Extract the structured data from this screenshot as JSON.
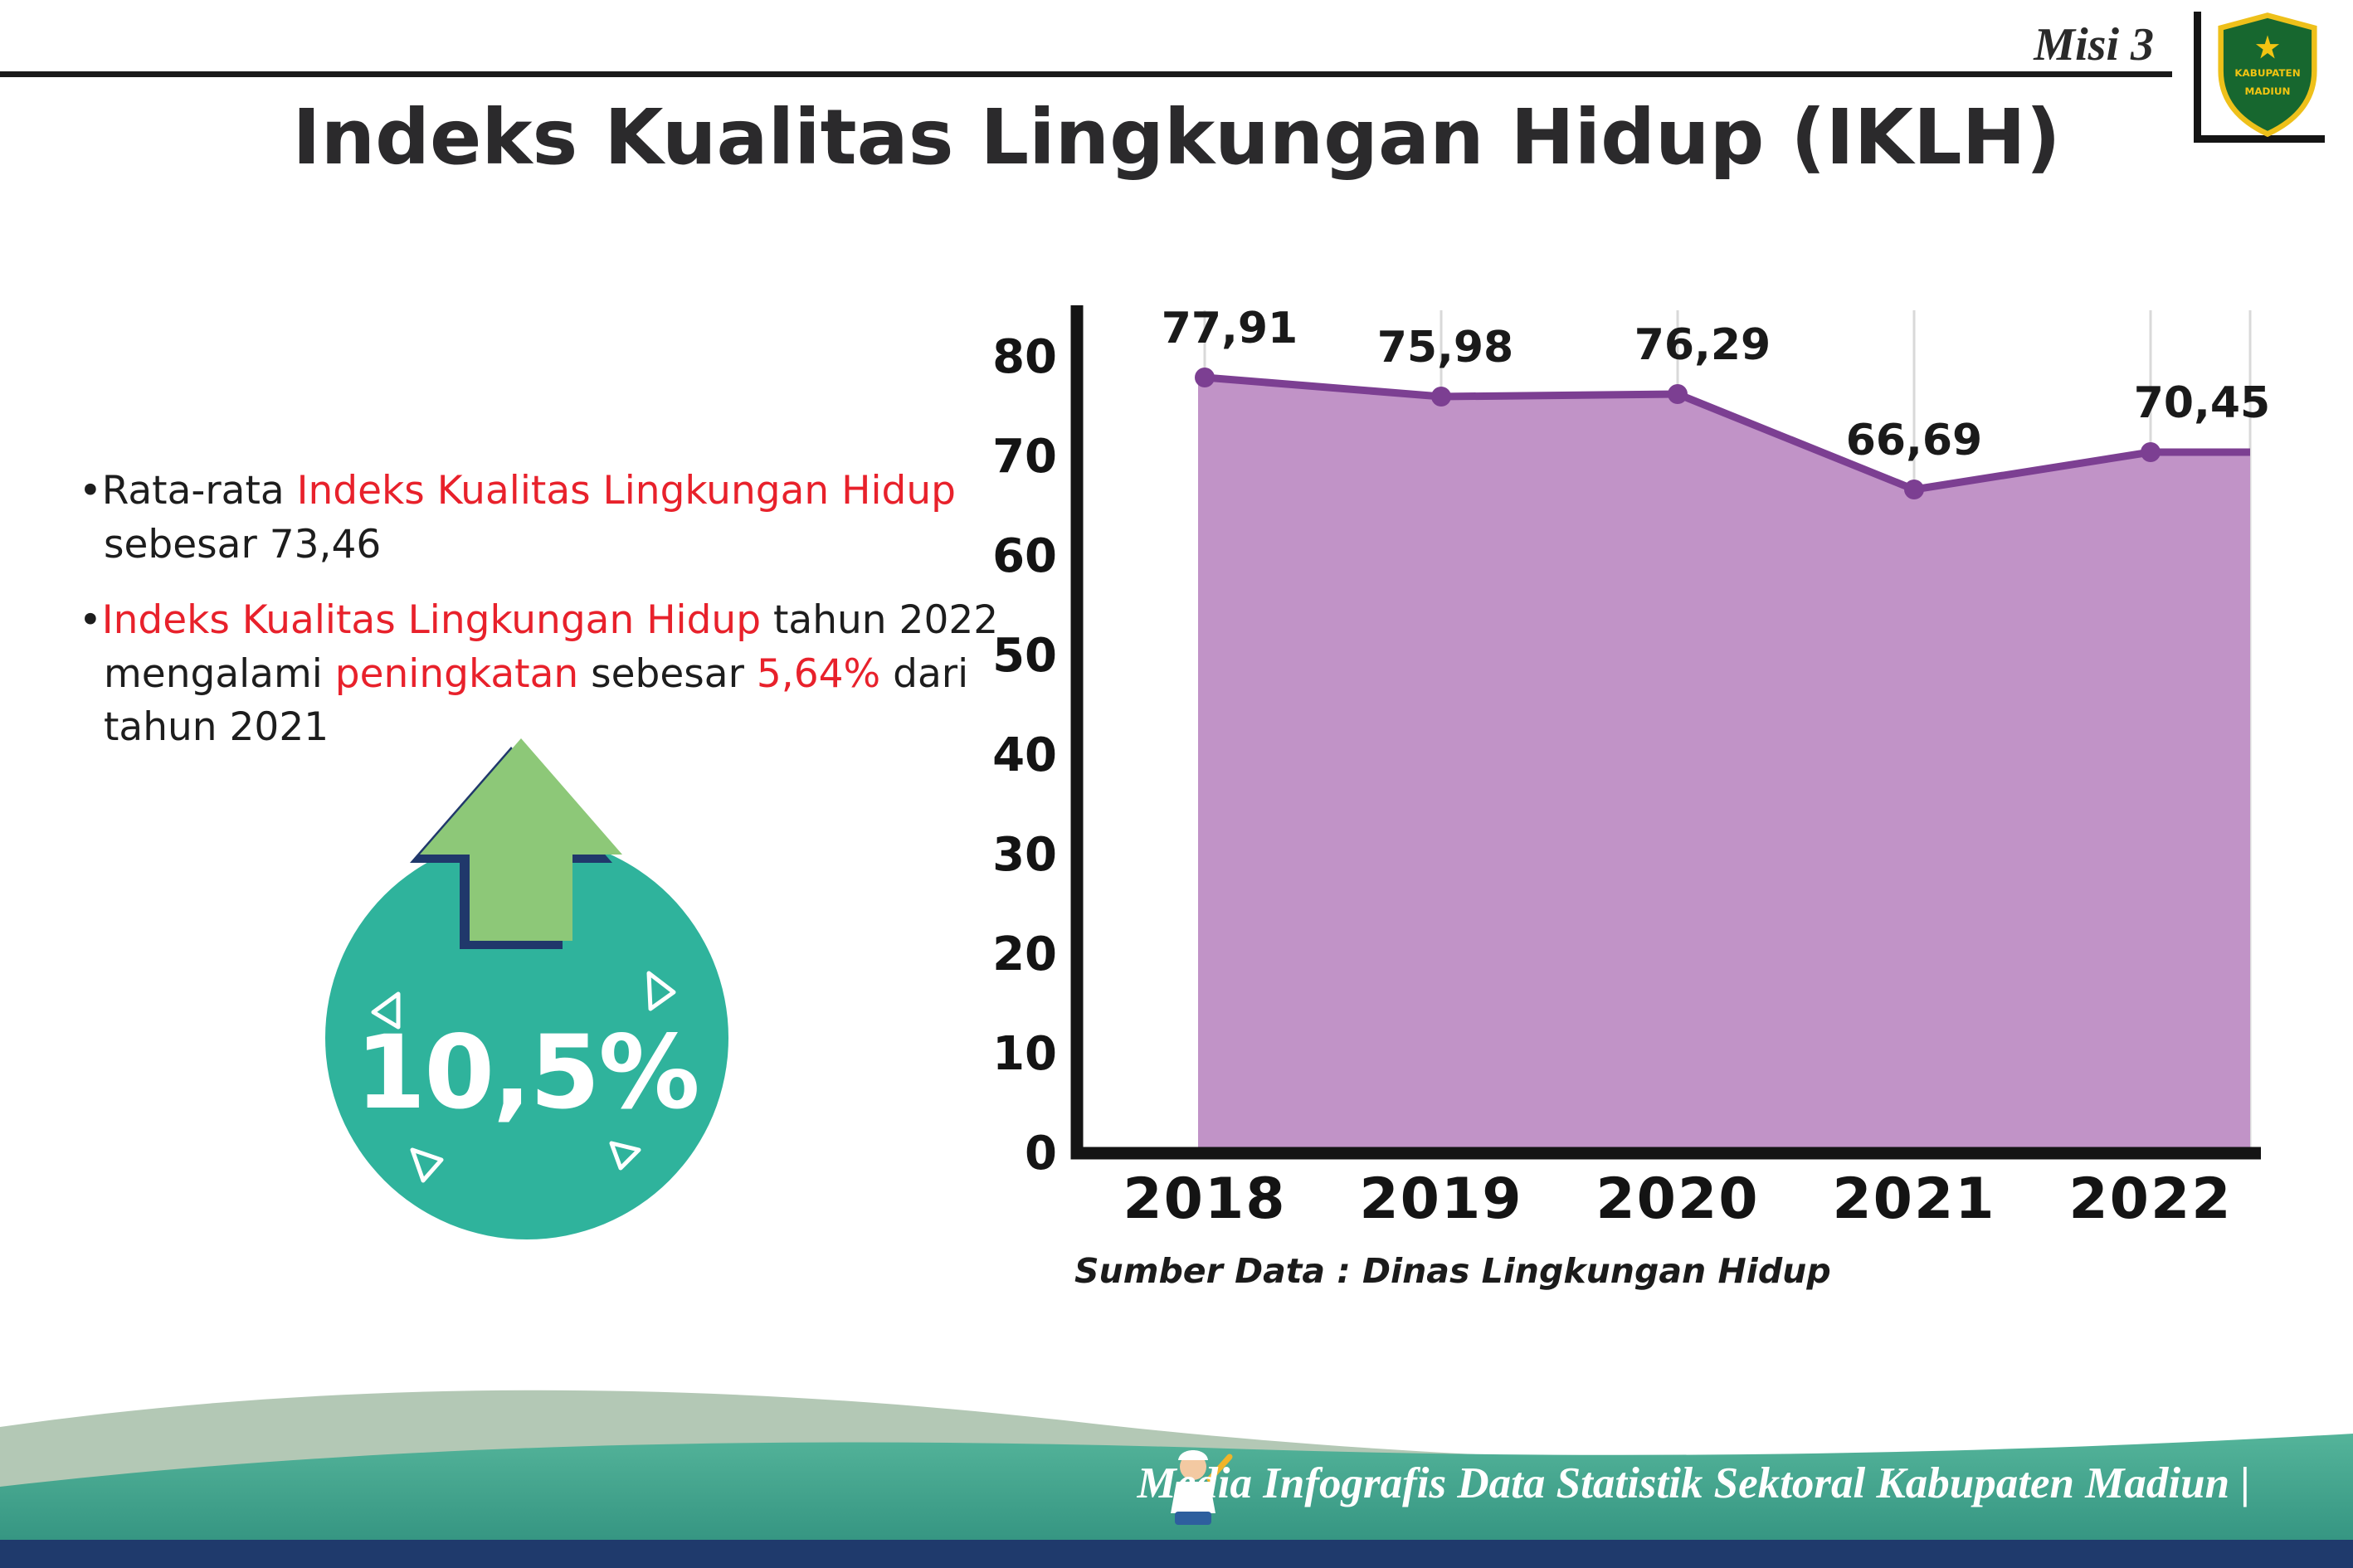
{
  "header": {
    "misi_label": "Misi 3",
    "logo": {
      "top_text": "KABUPATEN",
      "bottom_text": "MADIUN"
    }
  },
  "title": "Indeks Kualitas Lingkungan Hidup (IKLH)",
  "bullets": [
    {
      "lines": [
        {
          "segments": [
            {
              "text": "Rata-rata ",
              "style": "dark"
            },
            {
              "text": "Indeks Kualitas Lingkungan Hidup",
              "style": "red"
            }
          ]
        },
        {
          "segments": [
            {
              "text": "sebesar 73,46",
              "style": "dark"
            }
          ]
        }
      ]
    },
    {
      "lines": [
        {
          "segments": [
            {
              "text": "Indeks Kualitas Lingkungan Hidup",
              "style": "red"
            },
            {
              "text": " tahun 2022",
              "style": "dark"
            }
          ]
        },
        {
          "segments": [
            {
              "text": "mengalami ",
              "style": "dark"
            },
            {
              "text": "peningkatan",
              "style": "red"
            },
            {
              "text": " sebesar ",
              "style": "dark"
            },
            {
              "text": "5,64%",
              "style": "red"
            },
            {
              "text": " dari",
              "style": "dark"
            }
          ]
        },
        {
          "segments": [
            {
              "text": "tahun 2021",
              "style": "dark"
            }
          ]
        }
      ]
    }
  ],
  "badge": {
    "value": "10,5%",
    "circle_color": "#2fb39c",
    "arrow_color": "#8dc878",
    "arrow_outline_color": "#20386b"
  },
  "chart_data": {
    "type": "area",
    "categories": [
      "2018",
      "2019",
      "2020",
      "2021",
      "2022"
    ],
    "values": [
      77.91,
      75.98,
      76.29,
      66.69,
      70.45
    ],
    "point_labels": [
      "77,91",
      "75,98",
      "76,29",
      "66,69",
      "70,45"
    ],
    "ylim": [
      0,
      80
    ],
    "yticks": [
      0,
      10,
      20,
      30,
      40,
      50,
      60,
      70,
      80
    ],
    "grid": "vertical-light",
    "legend": "none",
    "colors": {
      "area_fill": "#c193c7",
      "line": "#7c3f92",
      "point": "#7c3f92",
      "axis": "#141414",
      "gridline": "#d9d9d9"
    },
    "source_caption": "Sumber Data : Dinas Lingkungan Hidup"
  },
  "footer": {
    "credit_text": "Media Infografis Data Statistik Sektoral Kabupaten Madiun |"
  },
  "palette": {
    "accent_red": "#e8212b",
    "title_color": "#2b2a2c",
    "teal_wave": "#2e8e7c",
    "pale_wave": "#b3c8b5",
    "navy_bar": "#1f3a6c"
  }
}
